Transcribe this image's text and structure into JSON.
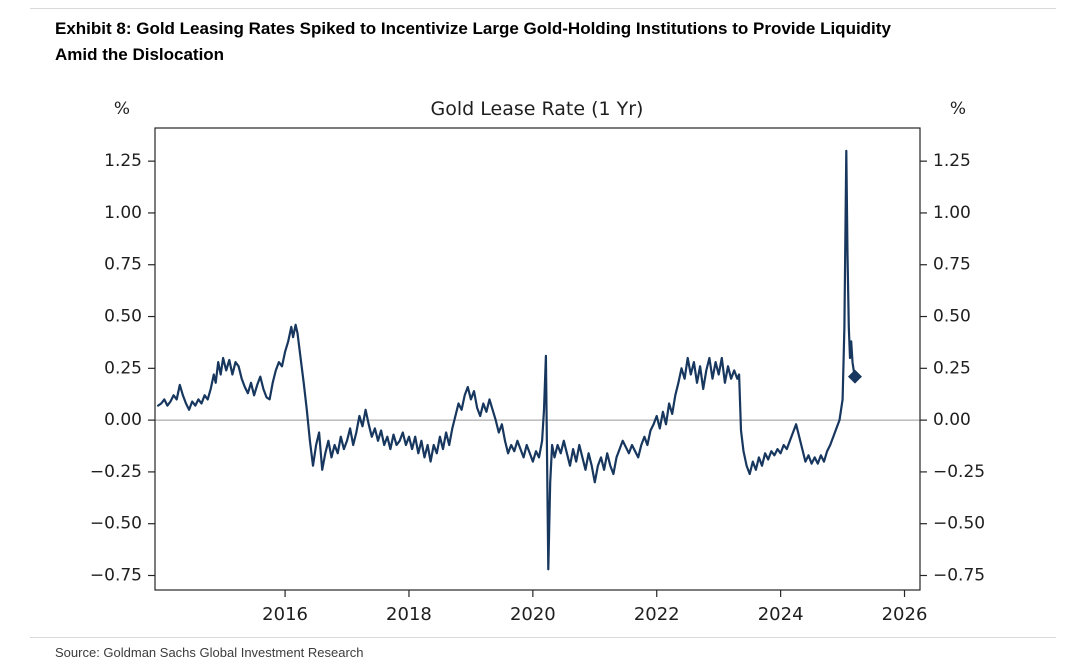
{
  "header": {
    "title_line1": "Exhibit 8: Gold Leasing Rates Spiked to Incentivize Large Gold-Holding Institutions to Provide Liquidity",
    "title_line2": "Amid the Dislocation"
  },
  "footer": {
    "source": "Source: Goldman Sachs Global Investment Research"
  },
  "chart_data": {
    "type": "line",
    "title": "Gold Lease Rate (1 Yr)",
    "y_unit_label_left": "%",
    "y_unit_label_right": "%",
    "xlabel": "",
    "ylabel": "%",
    "xlim": [
      2013.9,
      2026.25
    ],
    "ylim": [
      -0.82,
      1.41
    ],
    "x_ticks": [
      2016,
      2018,
      2020,
      2022,
      2024,
      2026
    ],
    "y_ticks": [
      -0.75,
      -0.5,
      -0.25,
      0,
      0.25,
      0.5,
      0.75,
      1,
      1.25
    ],
    "y_tick_labels": [
      "−0.75",
      "−0.50",
      "−0.25",
      "0.00",
      "0.25",
      "0.50",
      "0.75",
      "1.00",
      "1.25"
    ],
    "zero_line": true,
    "grid": false,
    "legend": "none",
    "line_color": "#17375e",
    "zero_line_color": "#999999",
    "axis_color": "#262626",
    "end_marker": "diamond",
    "series": [
      {
        "name": "Gold Lease Rate (1 Yr)",
        "points": [
          [
            2013.95,
            0.07
          ],
          [
            2014.0,
            0.08
          ],
          [
            2014.05,
            0.1
          ],
          [
            2014.1,
            0.07
          ],
          [
            2014.15,
            0.09
          ],
          [
            2014.2,
            0.12
          ],
          [
            2014.25,
            0.1
          ],
          [
            2014.3,
            0.17
          ],
          [
            2014.35,
            0.12
          ],
          [
            2014.4,
            0.08
          ],
          [
            2014.45,
            0.05
          ],
          [
            2014.5,
            0.09
          ],
          [
            2014.55,
            0.07
          ],
          [
            2014.6,
            0.1
          ],
          [
            2014.65,
            0.08
          ],
          [
            2014.7,
            0.12
          ],
          [
            2014.75,
            0.1
          ],
          [
            2014.8,
            0.15
          ],
          [
            2014.85,
            0.22
          ],
          [
            2014.88,
            0.18
          ],
          [
            2014.92,
            0.28
          ],
          [
            2014.96,
            0.22
          ],
          [
            2015.0,
            0.3
          ],
          [
            2015.05,
            0.24
          ],
          [
            2015.1,
            0.29
          ],
          [
            2015.15,
            0.22
          ],
          [
            2015.2,
            0.28
          ],
          [
            2015.25,
            0.26
          ],
          [
            2015.3,
            0.2
          ],
          [
            2015.35,
            0.16
          ],
          [
            2015.4,
            0.13
          ],
          [
            2015.45,
            0.18
          ],
          [
            2015.5,
            0.12
          ],
          [
            2015.55,
            0.17
          ],
          [
            2015.6,
            0.21
          ],
          [
            2015.65,
            0.15
          ],
          [
            2015.7,
            0.11
          ],
          [
            2015.75,
            0.1
          ],
          [
            2015.8,
            0.18
          ],
          [
            2015.85,
            0.24
          ],
          [
            2015.9,
            0.28
          ],
          [
            2015.95,
            0.26
          ],
          [
            2016.0,
            0.33
          ],
          [
            2016.05,
            0.38
          ],
          [
            2016.1,
            0.45
          ],
          [
            2016.13,
            0.4
          ],
          [
            2016.17,
            0.46
          ],
          [
            2016.2,
            0.42
          ],
          [
            2016.25,
            0.3
          ],
          [
            2016.3,
            0.18
          ],
          [
            2016.35,
            0.05
          ],
          [
            2016.4,
            -0.1
          ],
          [
            2016.45,
            -0.22
          ],
          [
            2016.5,
            -0.12
          ],
          [
            2016.55,
            -0.06
          ],
          [
            2016.6,
            -0.24
          ],
          [
            2016.65,
            -0.16
          ],
          [
            2016.7,
            -0.1
          ],
          [
            2016.75,
            -0.18
          ],
          [
            2016.8,
            -0.12
          ],
          [
            2016.85,
            -0.16
          ],
          [
            2016.9,
            -0.08
          ],
          [
            2016.95,
            -0.14
          ],
          [
            2017.0,
            -0.1
          ],
          [
            2017.05,
            -0.04
          ],
          [
            2017.1,
            -0.12
          ],
          [
            2017.15,
            -0.06
          ],
          [
            2017.2,
            0.02
          ],
          [
            2017.25,
            -0.03
          ],
          [
            2017.3,
            0.05
          ],
          [
            2017.35,
            -0.02
          ],
          [
            2017.4,
            -0.08
          ],
          [
            2017.45,
            -0.04
          ],
          [
            2017.5,
            -0.1
          ],
          [
            2017.55,
            -0.05
          ],
          [
            2017.6,
            -0.12
          ],
          [
            2017.65,
            -0.08
          ],
          [
            2017.7,
            -0.14
          ],
          [
            2017.75,
            -0.07
          ],
          [
            2017.8,
            -0.12
          ],
          [
            2017.85,
            -0.1
          ],
          [
            2017.9,
            -0.06
          ],
          [
            2017.95,
            -0.12
          ],
          [
            2018.0,
            -0.08
          ],
          [
            2018.05,
            -0.14
          ],
          [
            2018.1,
            -0.08
          ],
          [
            2018.15,
            -0.16
          ],
          [
            2018.2,
            -0.1
          ],
          [
            2018.25,
            -0.18
          ],
          [
            2018.3,
            -0.12
          ],
          [
            2018.35,
            -0.2
          ],
          [
            2018.4,
            -0.12
          ],
          [
            2018.45,
            -0.16
          ],
          [
            2018.5,
            -0.08
          ],
          [
            2018.55,
            -0.14
          ],
          [
            2018.6,
            -0.06
          ],
          [
            2018.65,
            -0.12
          ],
          [
            2018.7,
            -0.04
          ],
          [
            2018.75,
            0.02
          ],
          [
            2018.8,
            0.08
          ],
          [
            2018.85,
            0.05
          ],
          [
            2018.9,
            0.12
          ],
          [
            2018.95,
            0.16
          ],
          [
            2019.0,
            0.1
          ],
          [
            2019.05,
            0.14
          ],
          [
            2019.1,
            0.06
          ],
          [
            2019.15,
            0.02
          ],
          [
            2019.2,
            0.08
          ],
          [
            2019.25,
            0.04
          ],
          [
            2019.3,
            0.1
          ],
          [
            2019.35,
            0.05
          ],
          [
            2019.4,
            0.0
          ],
          [
            2019.45,
            -0.06
          ],
          [
            2019.5,
            -0.02
          ],
          [
            2019.55,
            -0.1
          ],
          [
            2019.6,
            -0.16
          ],
          [
            2019.65,
            -0.12
          ],
          [
            2019.7,
            -0.15
          ],
          [
            2019.75,
            -0.1
          ],
          [
            2019.8,
            -0.14
          ],
          [
            2019.85,
            -0.18
          ],
          [
            2019.9,
            -0.12
          ],
          [
            2019.95,
            -0.16
          ],
          [
            2020.0,
            -0.2
          ],
          [
            2020.05,
            -0.15
          ],
          [
            2020.1,
            -0.18
          ],
          [
            2020.15,
            -0.1
          ],
          [
            2020.18,
            0.05
          ],
          [
            2020.21,
            0.31
          ],
          [
            2020.23,
            -0.2
          ],
          [
            2020.25,
            -0.72
          ],
          [
            2020.28,
            -0.3
          ],
          [
            2020.31,
            -0.12
          ],
          [
            2020.35,
            -0.18
          ],
          [
            2020.4,
            -0.12
          ],
          [
            2020.45,
            -0.16
          ],
          [
            2020.5,
            -0.1
          ],
          [
            2020.55,
            -0.16
          ],
          [
            2020.6,
            -0.22
          ],
          [
            2020.65,
            -0.14
          ],
          [
            2020.7,
            -0.2
          ],
          [
            2020.75,
            -0.12
          ],
          [
            2020.8,
            -0.18
          ],
          [
            2020.85,
            -0.24
          ],
          [
            2020.9,
            -0.16
          ],
          [
            2020.95,
            -0.22
          ],
          [
            2021.0,
            -0.3
          ],
          [
            2021.05,
            -0.22
          ],
          [
            2021.1,
            -0.18
          ],
          [
            2021.15,
            -0.24
          ],
          [
            2021.2,
            -0.16
          ],
          [
            2021.25,
            -0.22
          ],
          [
            2021.3,
            -0.26
          ],
          [
            2021.35,
            -0.18
          ],
          [
            2021.4,
            -0.14
          ],
          [
            2021.45,
            -0.1
          ],
          [
            2021.5,
            -0.13
          ],
          [
            2021.55,
            -0.16
          ],
          [
            2021.6,
            -0.12
          ],
          [
            2021.65,
            -0.15
          ],
          [
            2021.7,
            -0.18
          ],
          [
            2021.75,
            -0.12
          ],
          [
            2021.8,
            -0.08
          ],
          [
            2021.85,
            -0.12
          ],
          [
            2021.9,
            -0.05
          ],
          [
            2021.95,
            -0.02
          ],
          [
            2022.0,
            0.02
          ],
          [
            2022.05,
            -0.04
          ],
          [
            2022.1,
            0.04
          ],
          [
            2022.15,
            -0.02
          ],
          [
            2022.2,
            0.08
          ],
          [
            2022.25,
            0.03
          ],
          [
            2022.3,
            0.12
          ],
          [
            2022.35,
            0.18
          ],
          [
            2022.4,
            0.25
          ],
          [
            2022.45,
            0.2
          ],
          [
            2022.5,
            0.3
          ],
          [
            2022.55,
            0.22
          ],
          [
            2022.6,
            0.28
          ],
          [
            2022.65,
            0.18
          ],
          [
            2022.7,
            0.26
          ],
          [
            2022.75,
            0.15
          ],
          [
            2022.8,
            0.24
          ],
          [
            2022.85,
            0.3
          ],
          [
            2022.9,
            0.2
          ],
          [
            2022.95,
            0.28
          ],
          [
            2023.0,
            0.22
          ],
          [
            2023.05,
            0.3
          ],
          [
            2023.1,
            0.18
          ],
          [
            2023.15,
            0.26
          ],
          [
            2023.2,
            0.2
          ],
          [
            2023.25,
            0.24
          ],
          [
            2023.3,
            0.2
          ],
          [
            2023.33,
            0.22
          ],
          [
            2023.36,
            -0.05
          ],
          [
            2023.4,
            -0.15
          ],
          [
            2023.45,
            -0.22
          ],
          [
            2023.5,
            -0.26
          ],
          [
            2023.55,
            -0.2
          ],
          [
            2023.6,
            -0.24
          ],
          [
            2023.65,
            -0.18
          ],
          [
            2023.7,
            -0.22
          ],
          [
            2023.75,
            -0.16
          ],
          [
            2023.8,
            -0.19
          ],
          [
            2023.85,
            -0.15
          ],
          [
            2023.9,
            -0.17
          ],
          [
            2023.95,
            -0.14
          ],
          [
            2024.0,
            -0.16
          ],
          [
            2024.05,
            -0.12
          ],
          [
            2024.1,
            -0.14
          ],
          [
            2024.15,
            -0.1
          ],
          [
            2024.2,
            -0.06
          ],
          [
            2024.25,
            -0.02
          ],
          [
            2024.3,
            -0.08
          ],
          [
            2024.35,
            -0.14
          ],
          [
            2024.4,
            -0.2
          ],
          [
            2024.45,
            -0.17
          ],
          [
            2024.5,
            -0.21
          ],
          [
            2024.55,
            -0.18
          ],
          [
            2024.6,
            -0.21
          ],
          [
            2024.65,
            -0.17
          ],
          [
            2024.7,
            -0.2
          ],
          [
            2024.75,
            -0.15
          ],
          [
            2024.8,
            -0.12
          ],
          [
            2024.85,
            -0.08
          ],
          [
            2024.9,
            -0.04
          ],
          [
            2024.95,
            0.0
          ],
          [
            2025.0,
            0.1
          ],
          [
            2025.03,
            0.45
          ],
          [
            2025.06,
            1.3
          ],
          [
            2025.08,
            0.8
          ],
          [
            2025.1,
            0.45
          ],
          [
            2025.12,
            0.3
          ],
          [
            2025.14,
            0.38
          ],
          [
            2025.16,
            0.28
          ],
          [
            2025.18,
            0.24
          ],
          [
            2025.2,
            0.21
          ]
        ]
      }
    ]
  }
}
